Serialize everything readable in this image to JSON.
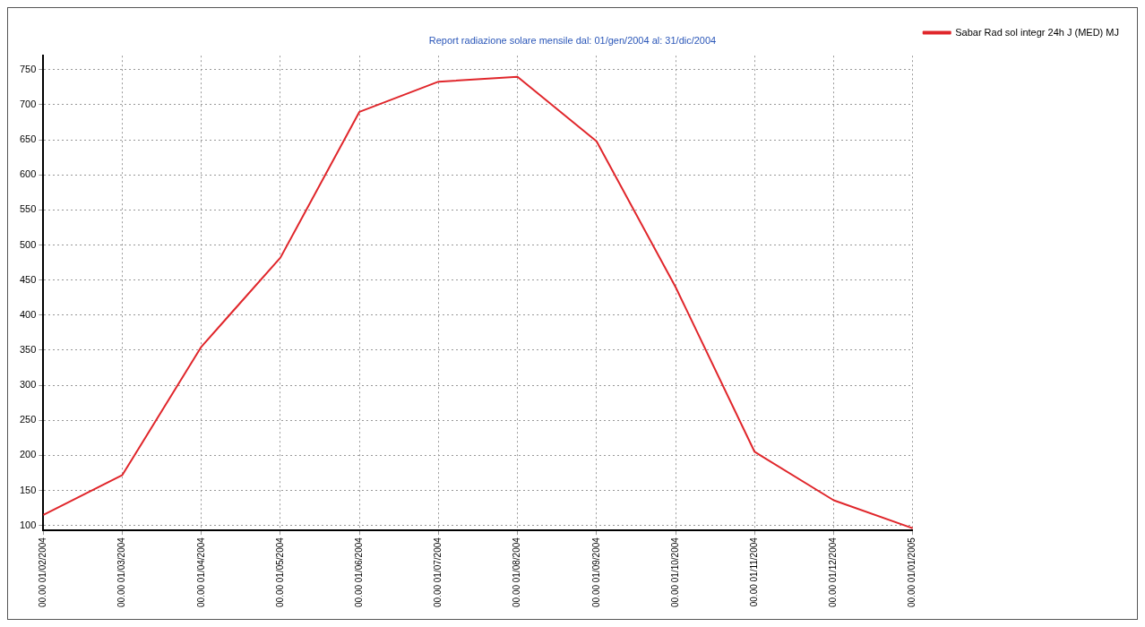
{
  "chart_data": {
    "type": "line",
    "title": "Report radiazione solare mensile dal: 01/gen/2004 al: 31/dic/2004",
    "categories": [
      "00.00 01/02/2004",
      "00.00 01/03/2004",
      "00.00 01/04/2004",
      "00.00 01/05/2004",
      "00.00 01/06/2004",
      "00.00 01/07/2004",
      "00.00 01/08/2004",
      "00.00 01/09/2004",
      "00.00 01/10/2004",
      "00.00 01/11/2004",
      "00.00 01/12/2004",
      "00.00 01/01/2005"
    ],
    "series": [
      {
        "name": "Sabar Rad sol integr 24h J (MED) MJ",
        "color": "#e0262b",
        "values": [
          115,
          172,
          355,
          482,
          690,
          733,
          740,
          648,
          440,
          205,
          136,
          96
        ]
      }
    ],
    "ylim": [
      93,
      770
    ],
    "yticks": [
      100,
      150,
      200,
      250,
      300,
      350,
      400,
      450,
      500,
      550,
      600,
      650,
      700,
      750
    ],
    "grid": true,
    "legend": "top right",
    "marker": "none",
    "line_style": "solid"
  }
}
